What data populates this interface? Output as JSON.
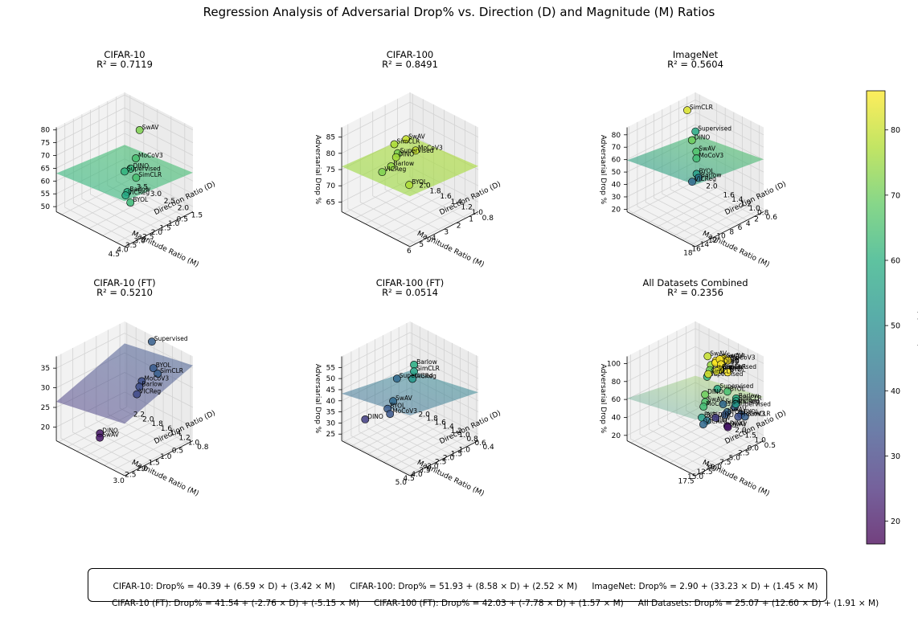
{
  "title": "Regression Analysis of Adversarial Drop% vs. Direction (D) and Magnitude (M) Ratios",
  "colorbar": {
    "label": "Adversarial Drop %",
    "min": 16.5,
    "max": 86,
    "ticks": [
      "20",
      "30",
      "40",
      "50",
      "60",
      "70",
      "80"
    ],
    "tick_values": [
      20,
      30,
      40,
      50,
      60,
      70,
      80
    ]
  },
  "chart_data": [
    {
      "type": "scatter3d",
      "name": "CIFAR-10",
      "title": "CIFAR-10",
      "r2_label": "R² = 0.7119",
      "xlabel": "Magnitude Ratio (M)",
      "ylabel": "Direction Ratio (D)",
      "zlabel": "",
      "m_range": [
        0.5,
        4.5
      ],
      "d_range": [
        1.2,
        3.7
      ],
      "z_range": [
        48,
        81
      ],
      "m_ticks": [
        "0.5",
        "1.0",
        "1.5",
        "2.0",
        "2.5",
        "3.0",
        "3.5",
        "4.0",
        "4.5"
      ],
      "m_tick_values": [
        0.5,
        1.0,
        1.5,
        2.0,
        2.5,
        3.0,
        3.5,
        4.0,
        4.5
      ],
      "d_ticks": [
        "1.5",
        "2.0",
        "2.5",
        "3.0",
        "3.5"
      ],
      "d_tick_values": [
        1.5,
        2.0,
        2.5,
        3.0,
        3.5
      ],
      "z_ticks": [
        "50",
        "55",
        "60",
        "65",
        "70",
        "75",
        "80"
      ],
      "z_tick_values": [
        50,
        55,
        60,
        65,
        70,
        75,
        80
      ],
      "points": [
        {
          "label": "SwAV",
          "m": 0.9,
          "d": 2.9,
          "z": 72
        },
        {
          "label": "MoCoV3",
          "m": 1.6,
          "d": 2.6,
          "z": 65
        },
        {
          "label": "DINO",
          "m": 1.9,
          "d": 2.6,
          "z": 62
        },
        {
          "label": "Supervised",
          "m": 2.1,
          "d": 2.7,
          "z": 61
        },
        {
          "label": "SimCLR",
          "m": 2.7,
          "d": 1.9,
          "z": 65
        },
        {
          "label": "BYOL",
          "m": 4.0,
          "d": 1.3,
          "z": 63
        },
        {
          "label": "Barlow",
          "m": 2.9,
          "d": 2.1,
          "z": 59
        },
        {
          "label": "VICReg",
          "m": 3.0,
          "d": 2.1,
          "z": 58
        }
      ],
      "surface_opacity": 0.6
    },
    {
      "type": "scatter3d",
      "name": "CIFAR-100",
      "title": "CIFAR-100",
      "r2_label": "R² = 0.8491",
      "xlabel": "Magnitude Ratio (M)",
      "ylabel": "Direction Ratio (D)",
      "zlabel": "Adversarial Drop %",
      "m_range": [
        1,
        6.5
      ],
      "d_range": [
        0.75,
        2.05
      ],
      "z_range": [
        62,
        88
      ],
      "m_ticks": [
        "1",
        "2",
        "3",
        "4",
        "5",
        "6"
      ],
      "m_tick_values": [
        1,
        2,
        3,
        4,
        5,
        6
      ],
      "d_ticks": [
        "0.8",
        "1.0",
        "1.2",
        "1.4",
        "1.6",
        "1.8",
        "2.0"
      ],
      "d_tick_values": [
        0.8,
        1.0,
        1.2,
        1.4,
        1.6,
        1.8,
        2.0
      ],
      "z_ticks": [
        "65",
        "70",
        "75",
        "80",
        "85"
      ],
      "z_tick_values": [
        65,
        70,
        75,
        80,
        85
      ],
      "points": [
        {
          "label": "SwAV",
          "m": 2.8,
          "d": 1.7,
          "z": 80
        },
        {
          "label": "MoCoV3",
          "m": 3.3,
          "d": 1.4,
          "z": 80
        },
        {
          "label": "SimCLR",
          "m": 2.9,
          "d": 1.9,
          "z": 77
        },
        {
          "label": "Supervised",
          "m": 2.2,
          "d": 2.0,
          "z": 72
        },
        {
          "label": "DINO",
          "m": 3.6,
          "d": 1.7,
          "z": 76
        },
        {
          "label": "Barlow",
          "m": 4.0,
          "d": 1.7,
          "z": 74
        },
        {
          "label": "VICReg",
          "m": 4.3,
          "d": 1.8,
          "z": 72
        },
        {
          "label": "BYOL",
          "m": 5.5,
          "d": 1.0,
          "z": 77
        }
      ],
      "surface_opacity": 0.6
    },
    {
      "type": "scatter3d",
      "name": "ImageNet",
      "title": "ImageNet",
      "r2_label": "R² = 0.5604",
      "xlabel": "Magnitude Ratio (M)",
      "ylabel": "Direction Ratio (D)",
      "zlabel": "Adversarial Drop %",
      "m_range": [
        2,
        18.5
      ],
      "d_range": [
        0.5,
        2.1
      ],
      "z_range": [
        18,
        86
      ],
      "m_ticks": [
        "2",
        "4",
        "6",
        "8",
        "10",
        "12",
        "14",
        "16",
        "18"
      ],
      "m_tick_values": [
        2,
        4,
        6,
        8,
        10,
        12,
        14,
        16,
        18
      ],
      "d_ticks": [
        "0.6",
        "0.8",
        "1.0",
        "1.2",
        "1.4",
        "1.6",
        "2.0"
      ],
      "d_tick_values": [
        0.6,
        0.8,
        1.0,
        1.2,
        1.4,
        1.6,
        2.0
      ],
      "z_ticks": [
        "20",
        "30",
        "40",
        "50",
        "60",
        "70",
        "80"
      ],
      "z_tick_values": [
        20,
        30,
        40,
        50,
        60,
        70,
        80
      ],
      "points": [
        {
          "label": "SimCLR",
          "m": 6.0,
          "d": 1.9,
          "z": 82
        },
        {
          "label": "Supervised",
          "m": 3.0,
          "d": 2.0,
          "z": 58
        },
        {
          "label": "DINO",
          "m": 9.0,
          "d": 1.5,
          "z": 70
        },
        {
          "label": "SwAV",
          "m": 10.0,
          "d": 1.3,
          "z": 66
        },
        {
          "label": "MoCoV3",
          "m": 11.0,
          "d": 1.2,
          "z": 64
        },
        {
          "label": "BYOL",
          "m": 12.0,
          "d": 1.1,
          "z": 55
        },
        {
          "label": "Barlow",
          "m": 9.5,
          "d": 1.3,
          "z": 44
        },
        {
          "label": "VICReg",
          "m": 10.0,
          "d": 1.4,
          "z": 40
        }
      ],
      "surface_opacity": 0.6
    },
    {
      "type": "scatter3d",
      "name": "CIFAR-10 (FT)",
      "title": "CIFAR-10 (FT)",
      "r2_label": "R² = 0.5210",
      "xlabel": "Magnitude Ratio (M)",
      "ylabel": "Direction Ratio (D)",
      "zlabel": "",
      "m_range": [
        0.3,
        3.2
      ],
      "d_range": [
        0.75,
        2.25
      ],
      "z_range": [
        16.5,
        38
      ],
      "m_ticks": [
        "0.5",
        "1.0",
        "1.5",
        "2.0",
        "2.5",
        "3.0"
      ],
      "m_tick_values": [
        0.5,
        1.0,
        1.5,
        2.0,
        2.5,
        3.0
      ],
      "d_ticks": [
        "0.8",
        "1.0",
        "1.2",
        "1.4",
        "1.6",
        "1.8",
        "2.0",
        "2.2"
      ],
      "d_tick_values": [
        0.8,
        1.0,
        1.2,
        1.4,
        1.6,
        1.8,
        2.0,
        2.2
      ],
      "z_ticks": [
        "20",
        "25",
        "30",
        "35"
      ],
      "z_tick_values": [
        20,
        25,
        30,
        35
      ],
      "points": [
        {
          "label": "Supervised",
          "m": 0.4,
          "d": 1.6,
          "z": 37
        },
        {
          "label": "BYOL",
          "m": 1.3,
          "d": 1.1,
          "z": 36
        },
        {
          "label": "SimCLR",
          "m": 1.6,
          "d": 0.85,
          "z": 37
        },
        {
          "label": "MoCoV3",
          "m": 1.6,
          "d": 1.2,
          "z": 33
        },
        {
          "label": "Barlow",
          "m": 1.8,
          "d": 1.15,
          "z": 32.5
        },
        {
          "label": "VICReg",
          "m": 2.0,
          "d": 1.1,
          "z": 31.5
        },
        {
          "label": "DINO",
          "m": 2.7,
          "d": 1.55,
          "z": 21
        },
        {
          "label": "SwAV",
          "m": 2.8,
          "d": 1.5,
          "z": 20.5
        }
      ],
      "surface_opacity": 0.5
    },
    {
      "type": "scatter3d",
      "name": "CIFAR-100 (FT)",
      "title": "CIFAR-100 (FT)",
      "r2_label": "R² = 0.0514",
      "xlabel": "Magnitude Ratio (M)",
      "ylabel": "Direction Ratio (D)",
      "zlabel": "Adversarial Drop %",
      "m_range": [
        0.8,
        5.1
      ],
      "d_range": [
        0.35,
        2.05
      ],
      "z_range": [
        22,
        60
      ],
      "m_ticks": [
        "1.0",
        "1.5",
        "2.0",
        "2.5",
        "3.0",
        "3.5",
        "4.0",
        "4.5",
        "5.0"
      ],
      "m_tick_values": [
        1.0,
        1.5,
        2.0,
        2.5,
        3.0,
        3.5,
        4.0,
        4.5,
        5.0
      ],
      "d_ticks": [
        "0.4",
        "0.6",
        "0.8",
        "1.0",
        "1.2",
        "1.4",
        "1.6",
        "1.8",
        "2.0"
      ],
      "d_tick_values": [
        0.4,
        0.6,
        0.8,
        1.0,
        1.2,
        1.4,
        1.6,
        1.8,
        2.0
      ],
      "z_ticks": [
        "25",
        "30",
        "35",
        "40",
        "45",
        "50",
        "55"
      ],
      "z_tick_values": [
        25,
        30,
        35,
        40,
        45,
        50,
        55
      ],
      "points": [
        {
          "label": "Barlow",
          "m": 3.2,
          "d": 1.0,
          "z": 59
        },
        {
          "label": "SimCLR",
          "m": 3.2,
          "d": 1.0,
          "z": 56
        },
        {
          "label": "VICReg",
          "m": 3.3,
          "d": 1.0,
          "z": 53
        },
        {
          "label": "SwAV",
          "m": 3.5,
          "d": 1.4,
          "z": 40
        },
        {
          "label": "BYOL",
          "m": 3.6,
          "d": 1.5,
          "z": 36
        },
        {
          "label": "MoCoV3",
          "m": 3.7,
          "d": 1.4,
          "z": 35
        },
        {
          "label": "Supervised",
          "m": 2.0,
          "d": 1.9,
          "z": 40
        },
        {
          "label": "DINO",
          "m": 4.0,
          "d": 1.9,
          "z": 29
        }
      ],
      "surface_opacity": 0.5
    },
    {
      "type": "scatter3d",
      "name": "All Datasets Combined",
      "title": "All Datasets Combined",
      "r2_label": "R² = 0.2356",
      "xlabel": "Magnitude Ratio (M)",
      "ylabel": "Direction Ratio (D)",
      "zlabel": "Adversarial Drop %",
      "m_range": [
        0,
        18.5
      ],
      "d_range": [
        0.2,
        3.7
      ],
      "z_range": [
        14,
        108
      ],
      "m_ticks": [
        "0.0",
        "2.5",
        "5.0",
        "7.5",
        "10.0",
        "12.5",
        "15.0",
        "17.5"
      ],
      "m_tick_values": [
        0,
        2.5,
        5,
        7.5,
        10,
        12.5,
        15,
        17.5
      ],
      "d_ticks": [
        "0.5",
        "1.0",
        "1.5",
        "2.0",
        "2.5",
        "3.0",
        "3.5"
      ],
      "d_tick_values": [
        0.5,
        1.0,
        1.5,
        2.0,
        2.5,
        3.0,
        3.5
      ],
      "z_ticks": [
        "20",
        "40",
        "60",
        "80",
        "100"
      ],
      "z_tick_values": [
        20,
        40,
        60,
        80,
        100
      ],
      "points": [
        {
          "label": "SwAV",
          "m": 0.9,
          "d": 2.9,
          "z": 80
        },
        {
          "label": "MoCoV3",
          "m": 1.6,
          "d": 2.6,
          "z": 75
        },
        {
          "label": "DINO",
          "m": 1.9,
          "d": 2.6,
          "z": 70
        },
        {
          "label": "Supervised",
          "m": 2.1,
          "d": 2.7,
          "z": 62
        },
        {
          "label": "SimCLR",
          "m": 2.7,
          "d": 1.9,
          "z": 80
        },
        {
          "label": "BYOL",
          "m": 4.0,
          "d": 1.3,
          "z": 65
        },
        {
          "label": "Barlow",
          "m": 2.9,
          "d": 2.1,
          "z": 88
        },
        {
          "label": "VICReg",
          "m": 3.0,
          "d": 2.1,
          "z": 86
        },
        {
          "label": "SwAV",
          "m": 2.8,
          "d": 1.7,
          "z": 95
        },
        {
          "label": "MoCoV3",
          "m": 3.3,
          "d": 1.4,
          "z": 97
        },
        {
          "label": "SimCLR",
          "m": 2.9,
          "d": 1.9,
          "z": 92
        },
        {
          "label": "Supervised",
          "m": 2.2,
          "d": 2.0,
          "z": 78
        },
        {
          "label": "DINO",
          "m": 3.6,
          "d": 1.7,
          "z": 90
        },
        {
          "label": "Barlow",
          "m": 4.0,
          "d": 1.7,
          "z": 85
        },
        {
          "label": "VICReg",
          "m": 4.3,
          "d": 1.8,
          "z": 83
        },
        {
          "label": "BYOL",
          "m": 5.5,
          "d": 1.0,
          "z": 93
        },
        {
          "label": "SimCLR",
          "m": 6.0,
          "d": 1.9,
          "z": 82
        },
        {
          "label": "Supervised",
          "m": 3.0,
          "d": 2.0,
          "z": 58
        },
        {
          "label": "DINO",
          "m": 9.0,
          "d": 1.5,
          "z": 70
        },
        {
          "label": "SwAV",
          "m": 10.0,
          "d": 1.3,
          "z": 66
        },
        {
          "label": "MoCoV3",
          "m": 11.0,
          "d": 1.2,
          "z": 64
        },
        {
          "label": "BYOL",
          "m": 12.0,
          "d": 1.1,
          "z": 55
        },
        {
          "label": "Barlow",
          "m": 9.5,
          "d": 1.3,
          "z": 44
        },
        {
          "label": "VICReg",
          "m": 10.0,
          "d": 1.4,
          "z": 40
        },
        {
          "label": "Supervised",
          "m": 0.4,
          "d": 1.6,
          "z": 37
        },
        {
          "label": "BYOL",
          "m": 1.3,
          "d": 1.1,
          "z": 36
        },
        {
          "label": "SimCLR",
          "m": 1.6,
          "d": 0.85,
          "z": 37
        },
        {
          "label": "MoCoV3",
          "m": 1.6,
          "d": 1.2,
          "z": 33
        },
        {
          "label": "DINO",
          "m": 2.7,
          "d": 1.55,
          "z": 21
        },
        {
          "label": "SwAV",
          "m": 2.8,
          "d": 1.5,
          "z": 20.5
        },
        {
          "label": "Barlow",
          "m": 3.2,
          "d": 1.0,
          "z": 59
        },
        {
          "label": "SimCLR",
          "m": 3.2,
          "d": 1.0,
          "z": 56
        },
        {
          "label": "VICReg",
          "m": 3.3,
          "d": 1.0,
          "z": 53
        },
        {
          "label": "SwAV",
          "m": 3.5,
          "d": 1.4,
          "z": 40
        },
        {
          "label": "BYOL",
          "m": 3.6,
          "d": 1.5,
          "z": 36
        },
        {
          "label": "Supervised",
          "m": 2.0,
          "d": 1.9,
          "z": 40
        },
        {
          "label": "DINO",
          "m": 4.0,
          "d": 1.9,
          "z": 29
        }
      ],
      "surface_opacity": 0.35
    }
  ],
  "equations": {
    "row1": [
      "CIFAR-10: Drop% = 40.39 + (6.59 × D) + (3.42 × M)",
      "CIFAR-100: Drop% = 51.93 + (8.58 × D) + (2.52 × M)",
      "ImageNet: Drop% = 2.90 + (33.23 × D) + (1.45 × M)"
    ],
    "row2": [
      "CIFAR-10 (FT): Drop% = 41.54 + (-2.76 × D) + (-5.15 × M)",
      "CIFAR-100 (FT): Drop% = 42.03 + (-7.78 × D) + (1.57 × M)",
      "All Datasets: Drop% = 25.07 + (12.60 × D) + (1.91 × M)"
    ]
  }
}
